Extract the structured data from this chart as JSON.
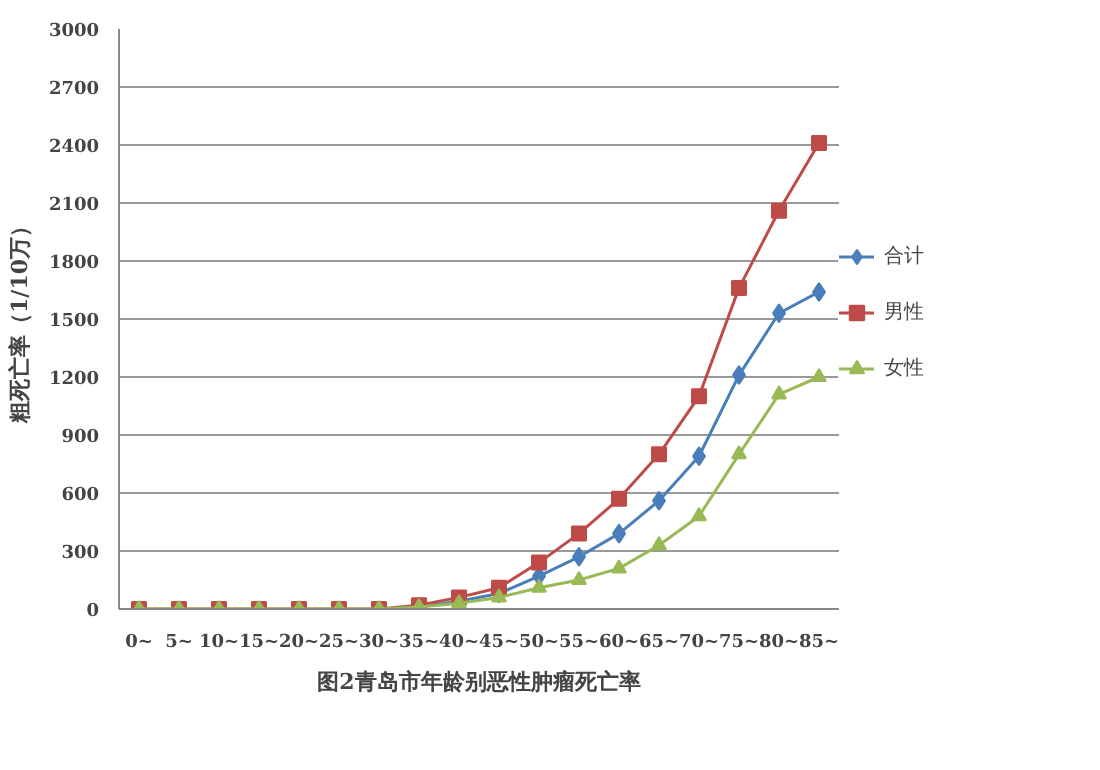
{
  "chart_data": {
    "type": "line",
    "xlabel": "图2青岛市年龄别恶性肿瘤死亡率",
    "ylabel": "粗死亡率（1/10万）",
    "categories": [
      "0~",
      "5~",
      "10~",
      "15~",
      "20~",
      "25~",
      "30~",
      "35~",
      "40~",
      "45~",
      "50~",
      "55~",
      "60~",
      "65~",
      "70~",
      "75~",
      "80~",
      "85~"
    ],
    "series": [
      {
        "name": "合计",
        "color": "#4a7ebb",
        "marker": "diamond",
        "values": [
          null,
          null,
          null,
          null,
          null,
          null,
          null,
          10,
          40,
          80,
          170,
          270,
          390,
          560,
          790,
          1210,
          1530,
          1640
        ]
      },
      {
        "name": "男性",
        "color": "#be4b48",
        "marker": "square",
        "values": [
          0,
          0,
          0,
          0,
          0,
          0,
          0,
          20,
          60,
          110,
          240,
          390,
          570,
          800,
          1100,
          1660,
          2060,
          2410
        ]
      },
      {
        "name": "女性",
        "color": "#98b954",
        "marker": "triangle",
        "values": [
          0,
          0,
          0,
          0,
          0,
          0,
          0,
          10,
          30,
          60,
          110,
          150,
          210,
          330,
          480,
          800,
          1110,
          1200
        ]
      }
    ],
    "ylim": [
      0,
      3000
    ],
    "yticks": [
      0,
      300,
      600,
      900,
      1200,
      1500,
      1800,
      2100,
      2400,
      2700,
      3000
    ],
    "grid": "y",
    "legend": "right",
    "line_style": "solid"
  }
}
